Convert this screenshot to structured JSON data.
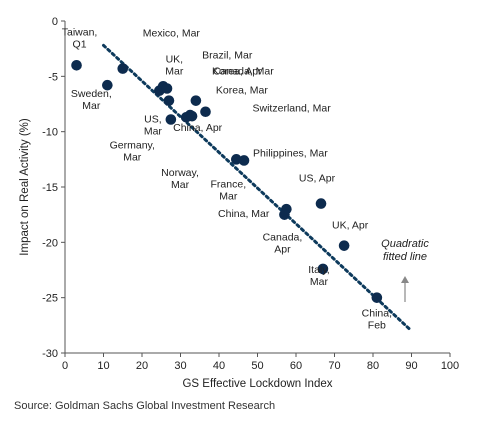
{
  "chart_data": {
    "type": "scatter",
    "xlabel": "GS  Effective Lockdown Index",
    "ylabel": "Impact on Real Activity  (%)",
    "xlim": [
      0,
      100
    ],
    "ylim": [
      -30,
      0
    ],
    "xticks": [
      0,
      10,
      20,
      30,
      40,
      50,
      60,
      70,
      80,
      90,
      100
    ],
    "yticks": [
      0,
      -5,
      -10,
      -15,
      -20,
      -25,
      -30
    ],
    "grid": false,
    "marker_color": "#0d2b4e",
    "fit_line_color": "#0d3a5c",
    "points": [
      {
        "label": [
          "Taiwan,",
          "Q1"
        ],
        "x": 3,
        "y": -4
      },
      {
        "label": [
          "Sweden,",
          "Mar"
        ],
        "x": 11,
        "y": -5.8
      },
      {
        "label": [
          "Mexico, Mar"
        ],
        "x": 15,
        "y": -4.3
      },
      {
        "label": [
          "UK,",
          "Mar"
        ],
        "x": 24.5,
        "y": -6.3
      },
      {
        "label": [
          "Brazil, Mar"
        ],
        "x": 25.5,
        "y": -5.9
      },
      {
        "label": [
          "Canada, Mar"
        ],
        "x": 26.5,
        "y": -6.1
      },
      {
        "label": [
          "Korea, Apr"
        ],
        "x": 27,
        "y": -7.2
      },
      {
        "label": [
          "Korea, Mar"
        ],
        "x": 34,
        "y": -7.2
      },
      {
        "label": [
          "Switzerland, Mar"
        ],
        "x": 36.5,
        "y": -8.2
      },
      {
        "label": [
          "US,",
          "Mar"
        ],
        "x": 27.5,
        "y": -8.9
      },
      {
        "label": [
          "China, Apr"
        ],
        "x": 32.5,
        "y": -8.5
      },
      {
        "label": [
          "Germany,",
          "Mar"
        ],
        "x": 31.5,
        "y": -8.7
      },
      {
        "label": [
          "Norway,",
          "Mar"
        ],
        "x": 33,
        "y": -8.6
      },
      {
        "label": [
          "France,",
          "Mar"
        ],
        "x": 44.5,
        "y": -12.5
      },
      {
        "label": [
          "Philippines,  Mar"
        ],
        "x": 46.5,
        "y": -12.6
      },
      {
        "label": [
          "US, Apr"
        ],
        "x": 66.5,
        "y": -16.5
      },
      {
        "label": [
          "China, Mar"
        ],
        "x": 57.5,
        "y": -17
      },
      {
        "label": [
          "Canada,",
          "Apr"
        ],
        "x": 57,
        "y": -17.5
      },
      {
        "label": [
          "UK, Apr"
        ],
        "x": 72.5,
        "y": -20.3
      },
      {
        "label": [
          "Italy,",
          "Mar"
        ],
        "x": 67,
        "y": -22.4
      },
      {
        "label": [
          "China,",
          "Feb"
        ],
        "x": 81,
        "y": -25
      }
    ],
    "fit_line": {
      "x": [
        10,
        90
      ],
      "y": [
        -2.2,
        -28
      ]
    },
    "annotation": [
      "Quadratic",
      "fitted line"
    ]
  },
  "source": "Source: Goldman Sachs Global Investment Research"
}
